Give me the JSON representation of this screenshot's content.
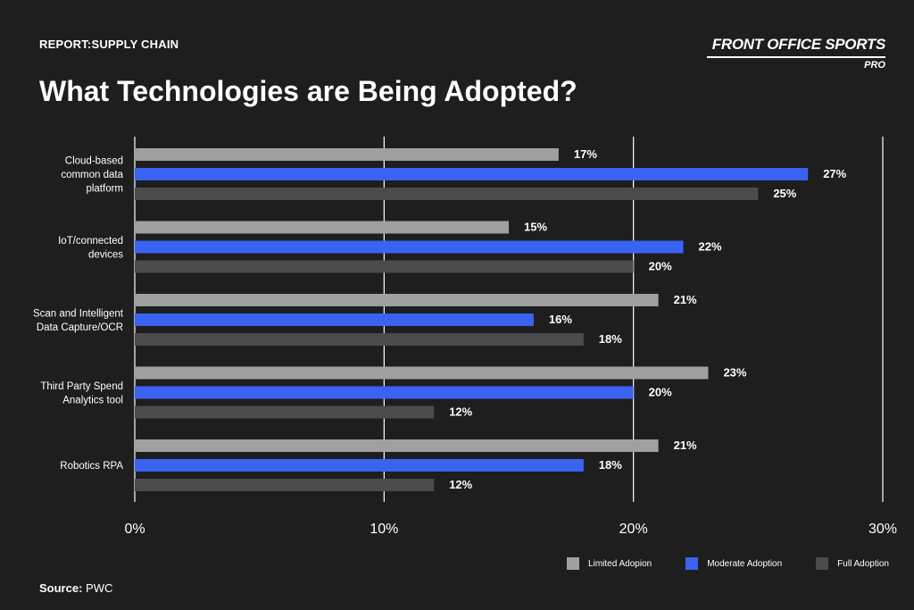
{
  "header": {
    "report_label": "REPORT:SUPPLY CHAIN",
    "title": "What Technologies are Being Adopted?"
  },
  "brand": {
    "name": "FRONT OFFICE SPORTS",
    "sub": "PRO"
  },
  "source": {
    "label": "Source:",
    "value": "PWC"
  },
  "colors": {
    "background": "#1e1e1e",
    "limited": "#a0a0a0",
    "moderate": "#3a63f2",
    "full": "#4b4b4b",
    "grid": "#ffffff"
  },
  "chart_data": {
    "type": "bar",
    "orientation": "horizontal",
    "categories": [
      "Cloud-based common data platform",
      "IoT/connected devices",
      "Scan and Intelligent Data Capture/OCR",
      "Third Party Spend Analytics tool",
      "Robotics RPA"
    ],
    "category_lines": [
      [
        "Cloud-based",
        "common data",
        "platform"
      ],
      [
        "IoT/connected",
        "devices"
      ],
      [
        "Scan and Intelligent",
        "Data Capture/OCR"
      ],
      [
        "Third Party Spend",
        "Analytics tool"
      ],
      [
        "Robotics RPA"
      ]
    ],
    "series": [
      {
        "name": "Limited Adopion",
        "color": "#a0a0a0",
        "values": [
          17,
          15,
          21,
          23,
          21
        ]
      },
      {
        "name": "Moderate Adoption",
        "color": "#3a63f2",
        "values": [
          27,
          22,
          16,
          20,
          18
        ]
      },
      {
        "name": "Full Adoption",
        "color": "#4b4b4b",
        "values": [
          25,
          20,
          18,
          12,
          12
        ]
      }
    ],
    "value_suffix": "%",
    "xlim": [
      0,
      30
    ],
    "xticks": [
      0,
      10,
      20,
      30
    ],
    "xtick_labels": [
      "0%",
      "10%",
      "20%",
      "30%"
    ],
    "grid": true,
    "legend_position": "bottom-right"
  }
}
